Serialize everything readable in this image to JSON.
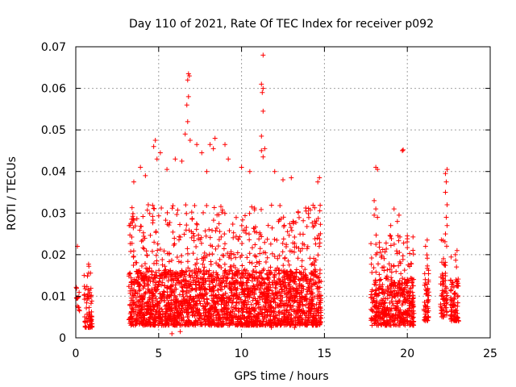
{
  "chart_data": {
    "type": "scatter",
    "title": "Day 110 of 2021, Rate Of TEC Index for receiver p092",
    "xlabel": "GPS time / hours",
    "ylabel": "ROTI / TECUs",
    "xlim": [
      0,
      25
    ],
    "ylim": [
      0,
      0.07
    ],
    "x_ticks": [
      "0",
      "5",
      "10",
      "15",
      "20",
      "25"
    ],
    "y_ticks": [
      "0",
      "0.01",
      "0.02",
      "0.03",
      "0.04",
      "0.05",
      "0.06",
      "0.07"
    ],
    "grid": true,
    "marker": "+",
    "color": "#ff0000",
    "activity_windows": [
      {
        "x_start": 0.0,
        "x_end": 0.25,
        "y_min": 0.0065,
        "y_max": 0.0165,
        "density": 12
      },
      {
        "x_start": 0.5,
        "x_end": 1.0,
        "y_min": 0.0025,
        "y_max": 0.019,
        "density": 70
      },
      {
        "x_start": 3.2,
        "x_end": 14.8,
        "y_min": 0.003,
        "y_max": 0.032,
        "density": 2600
      },
      {
        "x_start": 17.8,
        "x_end": 20.4,
        "y_min": 0.003,
        "y_max": 0.025,
        "density": 500
      },
      {
        "x_start": 21.0,
        "x_end": 21.3,
        "y_min": 0.004,
        "y_max": 0.02,
        "density": 60
      },
      {
        "x_start": 22.0,
        "x_end": 22.4,
        "y_min": 0.005,
        "y_max": 0.024,
        "density": 70
      },
      {
        "x_start": 22.6,
        "x_end": 23.1,
        "y_min": 0.004,
        "y_max": 0.021,
        "density": 90
      }
    ],
    "points": [
      {
        "x": 0.1,
        "y": 0.022
      },
      {
        "x": 0.05,
        "y": 0.0095
      },
      {
        "x": 6.8,
        "y": 0.0635
      },
      {
        "x": 6.85,
        "y": 0.063
      },
      {
        "x": 6.75,
        "y": 0.062
      },
      {
        "x": 6.8,
        "y": 0.058
      },
      {
        "x": 6.7,
        "y": 0.056
      },
      {
        "x": 6.75,
        "y": 0.052
      },
      {
        "x": 6.6,
        "y": 0.049
      },
      {
        "x": 6.9,
        "y": 0.0475
      },
      {
        "x": 7.3,
        "y": 0.0465
      },
      {
        "x": 11.3,
        "y": 0.068
      },
      {
        "x": 11.2,
        "y": 0.061
      },
      {
        "x": 11.3,
        "y": 0.06
      },
      {
        "x": 11.25,
        "y": 0.059
      },
      {
        "x": 11.3,
        "y": 0.0545
      },
      {
        "x": 11.2,
        "y": 0.0485
      },
      {
        "x": 11.2,
        "y": 0.045
      },
      {
        "x": 11.4,
        "y": 0.0455
      },
      {
        "x": 11.3,
        "y": 0.0435
      },
      {
        "x": 4.8,
        "y": 0.0475
      },
      {
        "x": 4.7,
        "y": 0.046
      },
      {
        "x": 5.1,
        "y": 0.0445
      },
      {
        "x": 4.9,
        "y": 0.043
      },
      {
        "x": 5.5,
        "y": 0.0405
      },
      {
        "x": 8.4,
        "y": 0.048
      },
      {
        "x": 8.1,
        "y": 0.0465
      },
      {
        "x": 8.3,
        "y": 0.0455
      },
      {
        "x": 7.6,
        "y": 0.0445
      },
      {
        "x": 9.0,
        "y": 0.0465
      },
      {
        "x": 9.2,
        "y": 0.043
      },
      {
        "x": 10.0,
        "y": 0.041
      },
      {
        "x": 10.5,
        "y": 0.04
      },
      {
        "x": 12.0,
        "y": 0.04
      },
      {
        "x": 12.5,
        "y": 0.038
      },
      {
        "x": 14.7,
        "y": 0.0385
      },
      {
        "x": 14.6,
        "y": 0.0375
      },
      {
        "x": 13.0,
        "y": 0.0385
      },
      {
        "x": 3.5,
        "y": 0.0375
      },
      {
        "x": 3.9,
        "y": 0.041
      },
      {
        "x": 4.2,
        "y": 0.039
      },
      {
        "x": 6.0,
        "y": 0.043
      },
      {
        "x": 6.4,
        "y": 0.0425
      },
      {
        "x": 7.9,
        "y": 0.04
      },
      {
        "x": 18.1,
        "y": 0.041
      },
      {
        "x": 18.2,
        "y": 0.0405
      },
      {
        "x": 19.7,
        "y": 0.045
      },
      {
        "x": 19.75,
        "y": 0.0452
      },
      {
        "x": 22.4,
        "y": 0.0405
      },
      {
        "x": 22.3,
        "y": 0.0395
      },
      {
        "x": 22.35,
        "y": 0.0375
      },
      {
        "x": 22.3,
        "y": 0.035
      },
      {
        "x": 22.4,
        "y": 0.032
      },
      {
        "x": 22.35,
        "y": 0.029
      },
      {
        "x": 22.4,
        "y": 0.027
      },
      {
        "x": 22.3,
        "y": 0.025
      },
      {
        "x": 18.0,
        "y": 0.033
      },
      {
        "x": 18.1,
        "y": 0.031
      },
      {
        "x": 18.2,
        "y": 0.029
      },
      {
        "x": 18.0,
        "y": 0.0295
      },
      {
        "x": 19.2,
        "y": 0.031
      },
      {
        "x": 19.5,
        "y": 0.0295
      },
      {
        "x": 19.4,
        "y": 0.028
      },
      {
        "x": 19.0,
        "y": 0.027
      },
      {
        "x": 20.0,
        "y": 0.0245
      },
      {
        "x": 21.2,
        "y": 0.0235
      },
      {
        "x": 21.1,
        "y": 0.022
      },
      {
        "x": 23.0,
        "y": 0.021
      },
      {
        "x": 22.9,
        "y": 0.02
      },
      {
        "x": 5.8,
        "y": 0.001
      },
      {
        "x": 6.3,
        "y": 0.0015
      },
      {
        "x": 11.8,
        "y": 0.0025
      },
      {
        "x": 13.2,
        "y": 0.0025
      }
    ]
  }
}
